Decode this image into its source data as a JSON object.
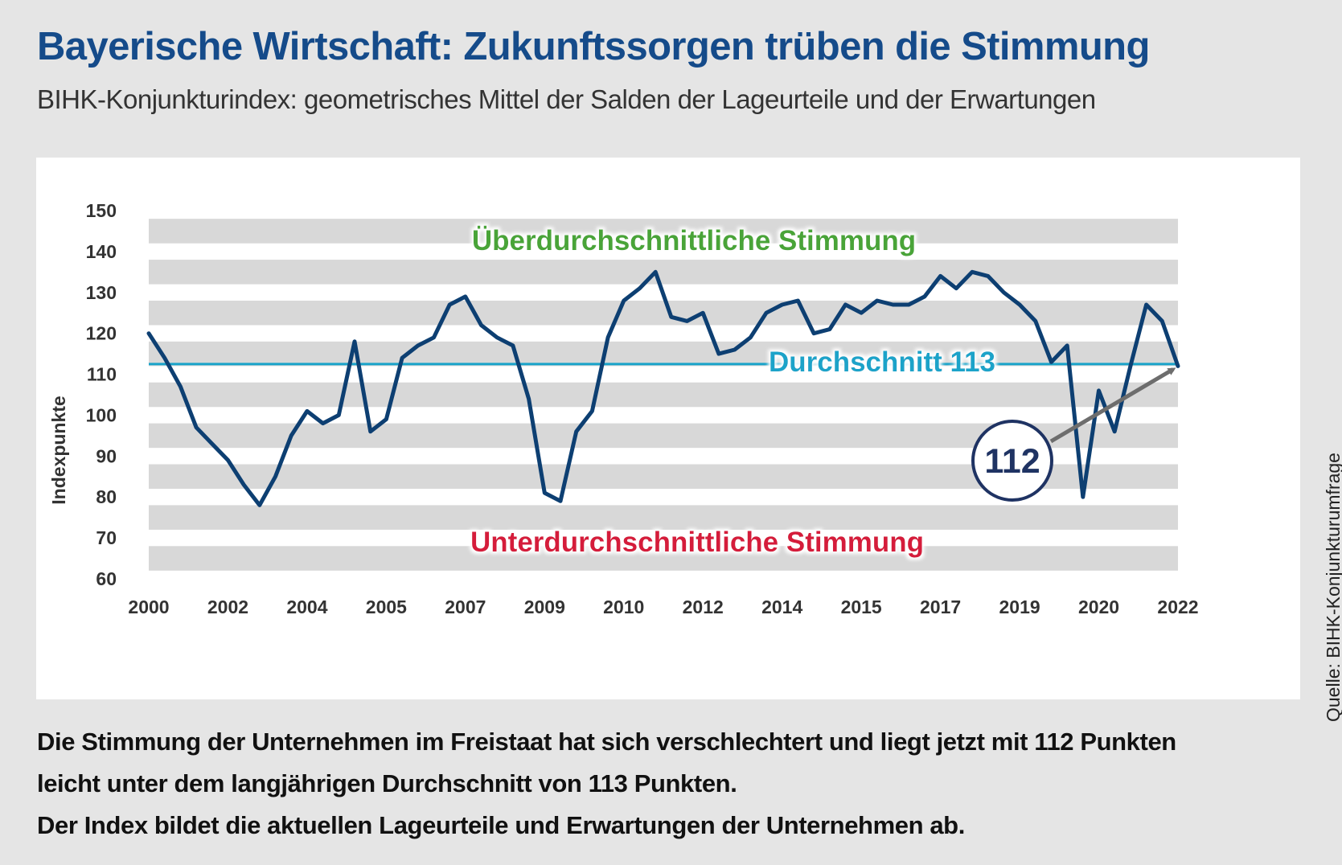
{
  "header": {
    "title": "Bayerische Wirtschaft: Zukunftssorgen trüben die Stimmung",
    "subtitle": "BIHK-Konjunkturindex: geometrisches Mittel der Salden der Lageurteile und der Erwartungen"
  },
  "source": "Quelle: BIHK-Konjunkturumfrage",
  "caption": {
    "line1": "Die Stimmung der Unternehmen im Freistaat hat sich verschlechtert und liegt jetzt mit 112 Punkten",
    "line2": "leicht unter dem langjährigen Durchschnitt von 113 Punkten.",
    "line3": "Der Index bildet die aktuellen Lageurteile und Erwartungen der Unternehmen ab."
  },
  "colors": {
    "title": "#154b8a",
    "line": "#0d3f72",
    "average": "#1aa3c9",
    "above": "#4aa437",
    "below": "#d51d3b",
    "band": "#d8d8d8",
    "badge": "#1f3363",
    "arrow": "#6d6d6d"
  },
  "chart_data": {
    "type": "line",
    "ylabel": "Indexpunkte",
    "ylim": [
      60,
      150
    ],
    "yticks": [
      60,
      70,
      80,
      90,
      100,
      110,
      120,
      130,
      140,
      150
    ],
    "xtick_labels": [
      "2000",
      "2002",
      "2004",
      "2005",
      "2007",
      "2009",
      "2010",
      "2012",
      "2014",
      "2015",
      "2017",
      "2019",
      "2020",
      "2022"
    ],
    "grid": "horizontal grey bands",
    "average": {
      "value": 113,
      "label": "Durchschnitt 113"
    },
    "zone_labels": {
      "above": "Überdurchschnittliche Stimmung",
      "below": "Unterdurchschnittliche Stimmung"
    },
    "callout": {
      "label": "112",
      "value": 112
    },
    "series": [
      {
        "values": [
          120,
          114,
          107,
          97,
          93,
          89,
          83,
          78,
          85,
          95,
          101,
          98,
          100,
          118,
          96,
          99,
          114,
          117,
          119,
          127,
          129,
          122,
          119,
          117,
          104,
          81,
          79,
          96,
          101,
          119,
          128,
          131,
          135,
          124,
          123,
          125,
          115,
          116,
          119,
          125,
          127,
          128,
          120,
          121,
          127,
          125,
          128,
          127,
          127,
          129,
          134,
          131,
          135,
          134,
          130,
          127,
          123,
          113,
          117,
          80,
          106,
          96,
          112,
          127,
          123,
          112
        ]
      }
    ]
  }
}
